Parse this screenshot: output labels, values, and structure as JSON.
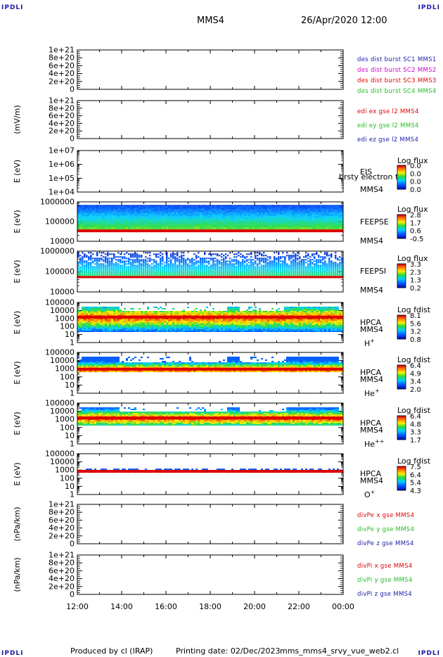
{
  "header": {
    "corner_tl": "IPDLI",
    "corner_tr": "IPDLI",
    "corner_bl": "IPDLI",
    "corner_br": "IPDLI",
    "mission": "MMS4",
    "datetime": "26/Apr/2020 12:00"
  },
  "footer": {
    "produced_by": "Produced by cl (IRAP)",
    "printing_date": "Printing date: 02/Dec/2023",
    "script": "mms_mms4_srvy_vue_web2.cl"
  },
  "time_axis": {
    "ticks": [
      "12:00",
      "14:00",
      "16:00",
      "18:00",
      "20:00",
      "22:00",
      "00:00"
    ],
    "range_hours": [
      12,
      24
    ]
  },
  "colors": {
    "red": "#e00000",
    "green": "#22bb22",
    "blue": "#1a1aa6",
    "magenta": "#cc00cc"
  },
  "chart_data": [
    {
      "type": "line",
      "id": "p1",
      "ylabel": "",
      "yticks": [
        "1e+21",
        "8e+20",
        "6e+20",
        "4e+20",
        "2e+20",
        "0"
      ],
      "ylim": [
        0,
        1e+21
      ],
      "series_labels": [
        {
          "text": "des dist burst SC1 MMS1",
          "color": "#1a1aa6"
        },
        {
          "text": "des dist burst SC2 MMS2",
          "color": "#cc00cc"
        },
        {
          "text": "des dist burst SC3 MMS3",
          "color": "#e00000"
        },
        {
          "text": "des dist burst SC4 MMS4",
          "color": "#22bb22"
        }
      ]
    },
    {
      "type": "line",
      "id": "p2",
      "ylabel": "(mV/m)",
      "yticks": [
        "1e+21",
        "8e+20",
        "6e+20",
        "4e+20",
        "2e+20",
        "0"
      ],
      "ylim": [
        0,
        1e+21
      ],
      "series_labels": [
        {
          "text": "edi ex gse l2 MMS4",
          "color": "#e00000"
        },
        {
          "text": "edi ey gse l2 MMS4",
          "color": "#22bb22"
        },
        {
          "text": "edi ez gse l2 MMS4",
          "color": "#1a1aa6"
        }
      ]
    },
    {
      "type": "heatmap",
      "id": "p3",
      "ylabel": "E (eV)",
      "yticks": [
        "1e+07",
        "1e+06",
        "1e+05",
        "1e+04"
      ],
      "ylim": [
        10000.0,
        10000000.0
      ],
      "side_labels": [
        "EIS",
        "MMS4"
      ],
      "overlay_text": "brsty electron tof",
      "colorbar": {
        "title": "Log flux",
        "ticks": [
          "0.0",
          "0.0",
          "0.0",
          "0.0"
        ]
      }
    },
    {
      "type": "heatmap",
      "id": "p4",
      "ylabel": "E (eV)",
      "yticks": [
        "1000000",
        "100000",
        "10000"
      ],
      "ylim": [
        10000,
        1000000
      ],
      "side_labels": [
        "FEEPSE",
        "MMS4"
      ],
      "colorbar": {
        "title": "Log flux",
        "ticks": [
          "2.8",
          "1.7",
          "0.6",
          "-0.5"
        ]
      }
    },
    {
      "type": "heatmap",
      "id": "p5",
      "ylabel": "E (eV)",
      "yticks": [
        "1000000",
        "100000",
        "10000"
      ],
      "ylim": [
        10000,
        1000000
      ],
      "side_labels": [
        "FEEPSI",
        "MMS4"
      ],
      "colorbar": {
        "title": "Log flux",
        "ticks": [
          "3.3",
          "2.3",
          "1.3",
          "0.2"
        ]
      }
    },
    {
      "type": "heatmap",
      "id": "p6",
      "ylabel": "E (eV)",
      "yticks": [
        "100000",
        "10000",
        "1000",
        "100",
        "10",
        "1"
      ],
      "ylim": [
        1,
        100000
      ],
      "side_labels": [
        "HPCA",
        "MMS4"
      ],
      "species": "H",
      "species_charge": "+",
      "colorbar": {
        "title": "Log fdist",
        "ticks": [
          "8.1",
          "5.6",
          "3.2",
          "0.8"
        ]
      }
    },
    {
      "type": "heatmap",
      "id": "p7",
      "ylabel": "E (eV)",
      "yticks": [
        "100000",
        "10000",
        "1000",
        "100",
        "10",
        "1"
      ],
      "ylim": [
        1,
        100000
      ],
      "side_labels": [
        "HPCA",
        "MMS4"
      ],
      "species": "He",
      "species_charge": "+",
      "colorbar": {
        "title": "Log fdist",
        "ticks": [
          "6.4",
          "4.9",
          "3.4",
          "2.0"
        ]
      }
    },
    {
      "type": "heatmap",
      "id": "p8",
      "ylabel": "E (eV)",
      "yticks": [
        "100000",
        "10000",
        "1000",
        "100",
        "10",
        "1"
      ],
      "ylim": [
        1,
        100000
      ],
      "side_labels": [
        "HPCA",
        "MMS4"
      ],
      "species": "He",
      "species_charge": "++",
      "colorbar": {
        "title": "Log fdist",
        "ticks": [
          "6.4",
          "4.8",
          "3.3",
          "1.7"
        ]
      }
    },
    {
      "type": "heatmap",
      "id": "p9",
      "ylabel": "E (eV)",
      "yticks": [
        "100000",
        "10000",
        "1000",
        "100",
        "10",
        "1"
      ],
      "ylim": [
        1,
        100000
      ],
      "side_labels": [
        "HPCA",
        "MMS4"
      ],
      "species": "O",
      "species_charge": "+",
      "colorbar": {
        "title": "Log fdist",
        "ticks": [
          "7.5",
          "6.4",
          "5.4",
          "4.3"
        ]
      }
    },
    {
      "type": "line",
      "id": "p10",
      "ylabel": "(nPa/km)",
      "yticks": [
        "1e+21",
        "8e+20",
        "6e+20",
        "4e+20",
        "2e+20",
        "0"
      ],
      "ylim": [
        0,
        1e+21
      ],
      "series_labels": [
        {
          "text": "divPe x gse MMS4",
          "color": "#e00000"
        },
        {
          "text": "divPe y gse MMS4",
          "color": "#22bb22"
        },
        {
          "text": "divPe z gse MMS4",
          "color": "#1a1aa6"
        }
      ]
    },
    {
      "type": "line",
      "id": "p11",
      "ylabel": "(nPa/km)",
      "yticks": [
        "1e+21",
        "8e+20",
        "6e+20",
        "4e+20",
        "2e+20",
        "0"
      ],
      "ylim": [
        0,
        1e+21
      ],
      "series_labels": [
        {
          "text": "divPi x gse MMS4",
          "color": "#e00000"
        },
        {
          "text": "divPi y gse MMS4",
          "color": "#22bb22"
        },
        {
          "text": "divPi z gse MMS4",
          "color": "#1a1aa6"
        }
      ]
    }
  ]
}
